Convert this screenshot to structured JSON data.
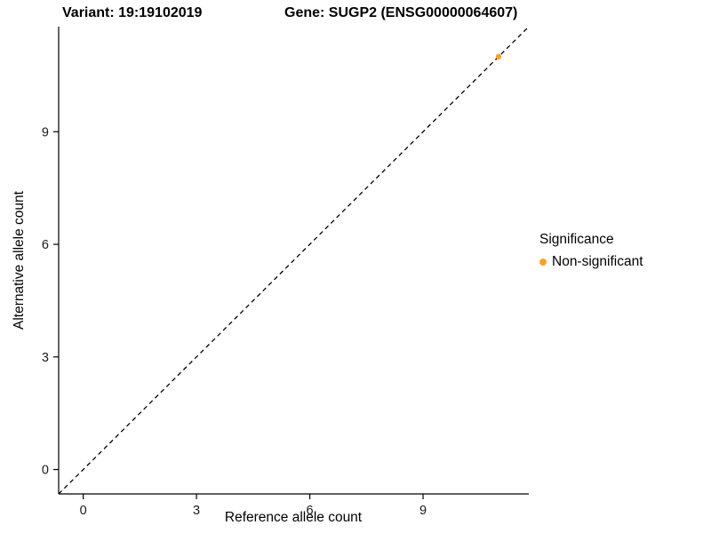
{
  "chart_data": {
    "type": "scatter",
    "titles": [
      "Variant: 19:19102019",
      "Gene: SUGP2 (ENSG00000064607)"
    ],
    "xlabel": "Reference allele count",
    "ylabel": "Alternative allele count",
    "xlim": [
      -0.65,
      11.8
    ],
    "ylim": [
      -0.65,
      11.8
    ],
    "xticks": [
      0,
      3,
      6,
      9
    ],
    "yticks": [
      0,
      3,
      6,
      9
    ],
    "grid": false,
    "reference_line": {
      "kind": "identity",
      "style": "dashed",
      "color": "#000000"
    },
    "series": [
      {
        "name": "Non-significant",
        "color": "#F8A22C",
        "points": [
          [
            11,
            11
          ]
        ]
      }
    ],
    "legend": {
      "title": "Significance",
      "position": "right"
    },
    "axis_color": "#000000",
    "background": "#FFFFFF"
  }
}
